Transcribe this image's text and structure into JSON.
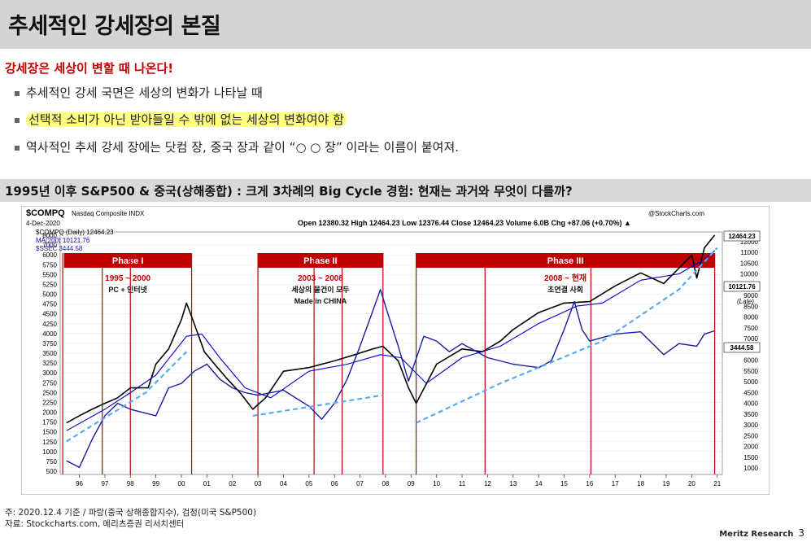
{
  "slide": {
    "title": "추세적인 강세장의 본질",
    "subtitle": "강세장은 세상이 변할 때 나온다!",
    "bullets": [
      "추세적인 강세 국면은 세상의 변화가 나타날 때",
      "선택적 소비가 아닌 받아들일 수 밖에 없는 세상의 변화여야 함",
      "역사적인 추세 강세 장에는 닷컴 장, 중국 장과 같이 “○ ○ 장” 이라는 이름이 붙여져."
    ],
    "section_header": "1995년 이후 S&P500 & 중국(상해종합) : 크게 3차례의 Big Cycle 경험: 현재는 과거와 무엇이 다를까?",
    "footnote": "주: 2020.12.4 기준 / 파랑(중국 상해종합지수), 검정(미국 S&P500)",
    "source": "자료: Stockcharts.com, 메리츠증권 리서치센터",
    "brand": "Meritz Research",
    "page": "3"
  },
  "colors": {
    "phase_red": "#c00000",
    "blue_line": "#1a1aa0",
    "price": "#000000",
    "trend": "#5aaaf0",
    "ma": "#0000cc"
  },
  "chart_data": {
    "type": "line",
    "ticker": "$COMPQ",
    "name": "Nasdaq Composite INDX",
    "date": "4-Dec-2020",
    "watermark": "@StockCharts.com",
    "ohlc": "Open 12380.32 High 12464.23 Low 12376.44 Close 12464.23 Volume 6.0B Chg +87.06 (+0.70%) ▲",
    "legend": [
      "$COMPQ (Daily) 12464.23",
      "MA(200) 10121.76",
      "$SSEC 3444.58"
    ],
    "left_ticks": [
      "8000",
      "7000",
      "6000",
      "5750",
      "5500",
      "5250",
      "5000",
      "4750",
      "4500",
      "4250",
      "4000",
      "3750",
      "3500",
      "3250",
      "3000",
      "2750",
      "2500",
      "2250",
      "2000",
      "1750",
      "1500",
      "1250",
      "1000",
      "750",
      "500"
    ],
    "right_ticks": [
      "12000",
      "11000",
      "10500",
      "10000",
      "9500",
      "9000",
      "8500",
      "8000",
      "7500",
      "7000",
      "6500",
      "6000",
      "5500",
      "5000",
      "4500",
      "4000",
      "3500",
      "3000",
      "2500",
      "2000",
      "1500",
      "1000"
    ],
    "right_labels": [
      "12464.23",
      "10121.76",
      "3444.58"
    ],
    "x_ticks": [
      "96",
      "97",
      "98",
      "99",
      "00",
      "01",
      "02",
      "03",
      "04",
      "05",
      "06",
      "07",
      "08",
      "09",
      "10",
      "11",
      "12",
      "13",
      "14",
      "15",
      "16",
      "17",
      "18",
      "19",
      "20",
      "21"
    ],
    "annotation_late": "(Late)",
    "phases": [
      {
        "label": "Phase I",
        "period": "1995 ~ 2000",
        "desc1": "PC + 인터넷",
        "desc2": "",
        "start": 1995.4,
        "end": 2000.4
      },
      {
        "label": "Phase II",
        "period": "2003 ~ 2008",
        "desc1": "세상의 물건이 모두",
        "desc2": "Made in CHINA",
        "start": 2003.0,
        "end": 2007.9
      },
      {
        "label": "Phase III",
        "period": "2008 ~ 현재",
        "desc1": "초연결 사회",
        "desc2": "",
        "start": 2009.2,
        "end": 2020.9
      }
    ],
    "vlines": [
      1995.35,
      1996.9,
      1998.0,
      2000.4,
      2003.0,
      2005.2,
      2006.3,
      2007.9,
      2009.2,
      2011.9,
      2016.05,
      2020.9
    ],
    "series": [
      {
        "name": "$COMPQ",
        "x": [
          1995.5,
          1996,
          1996.5,
          1997,
          1997.5,
          1998,
          1998.7,
          1999,
          1999.5,
          2000.0,
          2000.2,
          2000.5,
          2000.9,
          2001.3,
          2001.8,
          2002.3,
          2002.8,
          2003.3,
          2004,
          2005,
          2006,
          2006.8,
          2007.5,
          2007.9,
          2008.5,
          2008.9,
          2009.2,
          2010,
          2011,
          2011.8,
          2012.5,
          2013,
          2014,
          2015,
          2016,
          2017,
          2018,
          2018.9,
          2019.5,
          2020.0,
          2020.2,
          2020.5,
          2020.9
        ],
        "values": [
          1000,
          1100,
          1200,
          1300,
          1400,
          1600,
          1600,
          2200,
          2700,
          4000,
          5000,
          3800,
          2600,
          2200,
          1800,
          1500,
          1200,
          1400,
          2000,
          2100,
          2300,
          2500,
          2700,
          2800,
          2300,
          1600,
          1300,
          2200,
          2700,
          2600,
          3000,
          3500,
          4400,
          5000,
          5100,
          6300,
          7500,
          6500,
          8000,
          9500,
          7000,
          10500,
          12464
        ]
      },
      {
        "name": "$SSEC",
        "x": [
          1995.5,
          1996,
          1996.5,
          1997,
          1997.5,
          1998,
          1999,
          1999.5,
          2000,
          2000.5,
          2001,
          2001.5,
          2002,
          2002.5,
          2003,
          2004,
          2005,
          2005.5,
          2006,
          2006.5,
          2007,
          2007.5,
          2007.8,
          2008,
          2008.5,
          2008.9,
          2009.5,
          2010,
          2010.5,
          2011,
          2012,
          2013,
          2014,
          2014.5,
          2015,
          2015.4,
          2015.7,
          2016,
          2017,
          2018,
          2018.9,
          2019.5,
          2020.2,
          2020.5,
          2020.9
        ],
        "values": [
          600,
          550,
          800,
          1100,
          1300,
          1200,
          1100,
          1600,
          1700,
          2000,
          2200,
          1800,
          1600,
          1500,
          1450,
          1550,
          1250,
          1050,
          1300,
          1800,
          2800,
          4500,
          6000,
          4800,
          2800,
          1750,
          3200,
          3000,
          2600,
          2900,
          2400,
          2200,
          2100,
          2300,
          3500,
          5100,
          3500,
          3000,
          3300,
          3400,
          2500,
          2900,
          2800,
          3300,
          3444
        ]
      },
      {
        "name": "MA(200)",
        "x": [
          1995.5,
          1997,
          1998,
          1999,
          2000.2,
          2000.8,
          2001.5,
          2002.5,
          2003.5,
          2005,
          2006.5,
          2007.8,
          2008.6,
          2009.6,
          2011,
          2012.5,
          2014,
          2015.5,
          2016.5,
          2018,
          2019.5,
          2020.5,
          2020.9
        ],
        "values": [
          900,
          1200,
          1500,
          1900,
          3200,
          3300,
          2400,
          1600,
          1400,
          2000,
          2200,
          2500,
          2400,
          1700,
          2400,
          2800,
          3800,
          4800,
          5000,
          6800,
          7400,
          9000,
          10121
        ]
      },
      {
        "name": "trend",
        "x": [
          1995.5,
          1998.6,
          2000.2
        ],
        "values": [
          780,
          1500,
          2600
        ]
      },
      {
        "name": "trend2",
        "x": [
          2002.8,
          2007.9
        ],
        "values": [
          1100,
          1450
        ]
      },
      {
        "name": "trend3",
        "x": [
          2009.2,
          2012.5,
          2016.5,
          2019.5,
          2021.0
        ],
        "values": [
          1000,
          1700,
          3000,
          6000,
          10500
        ]
      }
    ]
  }
}
